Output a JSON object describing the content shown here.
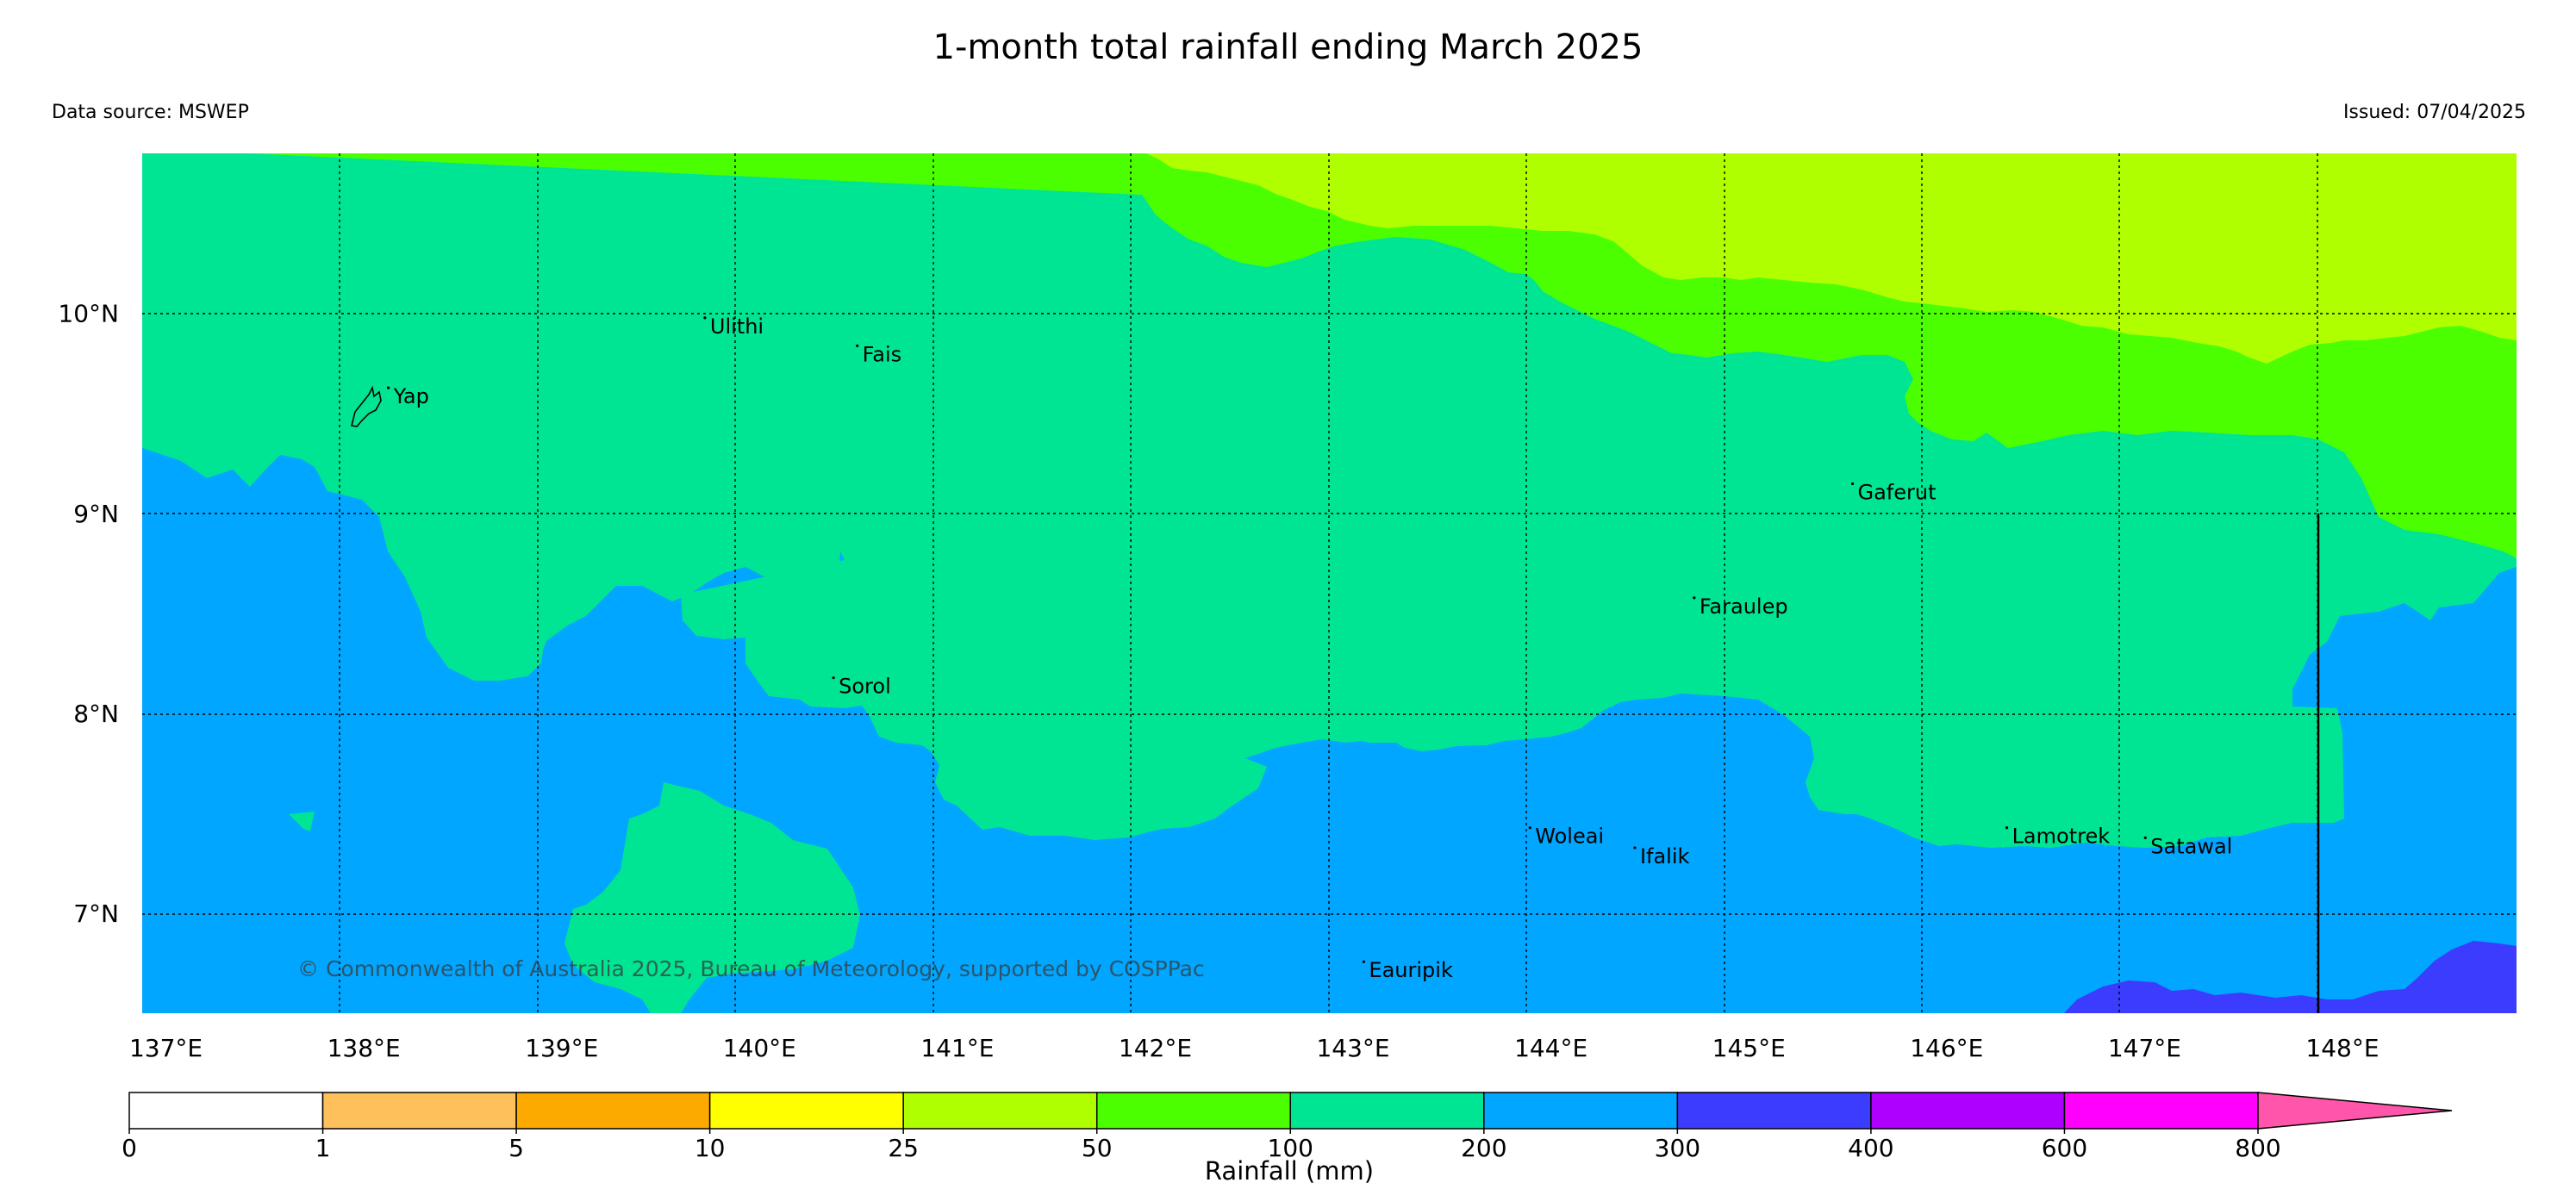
{
  "title": "1-month total rainfall ending March 2025",
  "source_label": "Data source: MSWEP",
  "issued_label": "Issued: 07/04/2025",
  "copyright": "© Commonwealth of Australia 2025, Bureau of Meteorology, supported by COSPPac",
  "lat_labels": [
    {
      "id": "10n",
      "value": 10,
      "text": "10°N"
    },
    {
      "id": "9n",
      "value": 9,
      "text": "9°N"
    },
    {
      "id": "8n",
      "value": 8,
      "text": "8°N"
    },
    {
      "id": "7n",
      "value": 7,
      "text": "7°N"
    }
  ],
  "lon_labels": [
    {
      "id": "137e",
      "value": 137,
      "text": "137°E"
    },
    {
      "id": "138e",
      "value": 138,
      "text": "138°E"
    },
    {
      "id": "139e",
      "value": 139,
      "text": "139°E"
    },
    {
      "id": "140e",
      "value": 140,
      "text": "140°E"
    },
    {
      "id": "141e",
      "value": 141,
      "text": "141°E"
    },
    {
      "id": "142e",
      "value": 142,
      "text": "142°E"
    },
    {
      "id": "143e",
      "value": 143,
      "text": "143°E"
    },
    {
      "id": "144e",
      "value": 144,
      "text": "144°E"
    },
    {
      "id": "145e",
      "value": 145,
      "text": "145°E"
    },
    {
      "id": "146e",
      "value": 146,
      "text": "146°E"
    },
    {
      "id": "147e",
      "value": 147,
      "text": "147°E"
    },
    {
      "id": "148e",
      "value": 148,
      "text": "148°E"
    }
  ],
  "places": [
    {
      "id": "yap",
      "name": "Yap",
      "lon": 138.15,
      "lat": 9.55
    },
    {
      "id": "ulithi",
      "name": "Ulithi",
      "lon": 139.75,
      "lat": 9.9
    },
    {
      "id": "fais",
      "name": "Fais",
      "lon": 140.52,
      "lat": 9.76
    },
    {
      "id": "gaferut",
      "name": "Gaferut",
      "lon": 145.55,
      "lat": 9.07
    },
    {
      "id": "faraulep",
      "name": "Faraulep",
      "lon": 144.75,
      "lat": 8.5
    },
    {
      "id": "sorol",
      "name": "Sorol",
      "lon": 140.4,
      "lat": 8.1
    },
    {
      "id": "woleai",
      "name": "Woleai",
      "lon": 143.92,
      "lat": 7.35
    },
    {
      "id": "ifalik",
      "name": "Ifalik",
      "lon": 144.45,
      "lat": 7.25
    },
    {
      "id": "lamotrek",
      "name": "Lamotrek",
      "lon": 146.33,
      "lat": 7.35
    },
    {
      "id": "satawal",
      "name": "Satawal",
      "lon": 147.03,
      "lat": 7.3
    },
    {
      "id": "eauripik",
      "name": "Eauripik",
      "lon": 143.08,
      "lat": 6.68
    }
  ],
  "colors": {
    "c_0_1": "#ffffff",
    "c_1_5": "#fec05a",
    "c_5_10": "#fdaa00",
    "c_10_25": "#ffff00",
    "c_25_50": "#b0ff00",
    "c_50_100": "#4cff00",
    "c_100_200": "#00e593",
    "c_200_300": "#00a6ff",
    "c_300_400": "#3c3cff",
    "c_400_600": "#ad00ff",
    "c_600_800": "#ff00ff",
    "c_800_plus": "#ff55aa"
  },
  "colorbar": {
    "title": "Rainfall (mm)",
    "ticks": [
      "0",
      "1",
      "5",
      "10",
      "25",
      "50",
      "100",
      "200",
      "300",
      "400",
      "600",
      "800"
    ],
    "bins": [
      {
        "from": "0",
        "to": "1",
        "color": "#ffffff"
      },
      {
        "from": "1",
        "to": "5",
        "color": "#fec05a"
      },
      {
        "from": "5",
        "to": "10",
        "color": "#fdaa00"
      },
      {
        "from": "10",
        "to": "25",
        "color": "#ffff00"
      },
      {
        "from": "25",
        "to": "50",
        "color": "#b0ff00"
      },
      {
        "from": "50",
        "to": "100",
        "color": "#4cff00"
      },
      {
        "from": "100",
        "to": "200",
        "color": "#00e593"
      },
      {
        "from": "200",
        "to": "300",
        "color": "#00a6ff"
      },
      {
        "from": "300",
        "to": "400",
        "color": "#3c3cff"
      },
      {
        "from": "400",
        "to": "600",
        "color": "#ad00ff"
      },
      {
        "from": "600",
        "to": "800",
        "color": "#ff00ff"
      }
    ],
    "extend_color": "#ff55aa"
  }
}
